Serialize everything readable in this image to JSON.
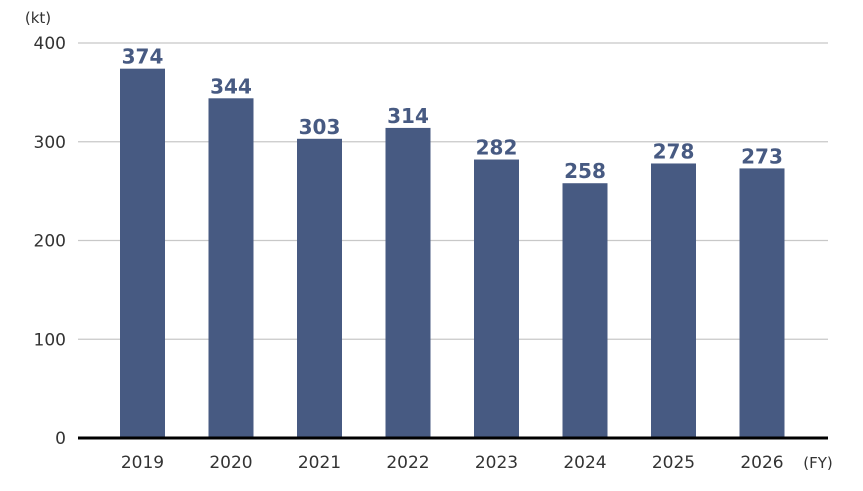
{
  "chart_data": {
    "type": "bar",
    "y_unit": "(kt)",
    "x_unit": "(FY)",
    "categories": [
      "2019",
      "2020",
      "2021",
      "2022",
      "2023",
      "2024",
      "2025",
      "2026"
    ],
    "values": [
      374,
      344,
      303,
      314,
      282,
      258,
      278,
      273
    ],
    "data_labels": [
      "374",
      "344",
      "303",
      "314",
      "282",
      "258",
      "278",
      "273"
    ],
    "ylim": [
      0,
      400
    ],
    "yticks": [
      0,
      100,
      200,
      300,
      400
    ],
    "ytick_labels": [
      "0",
      "100",
      "200",
      "300",
      "400"
    ],
    "grid": true,
    "colors": {
      "bar": "#475a82",
      "label": "#475a82",
      "grid": "#c8c8c8",
      "axis": "#000000"
    }
  }
}
